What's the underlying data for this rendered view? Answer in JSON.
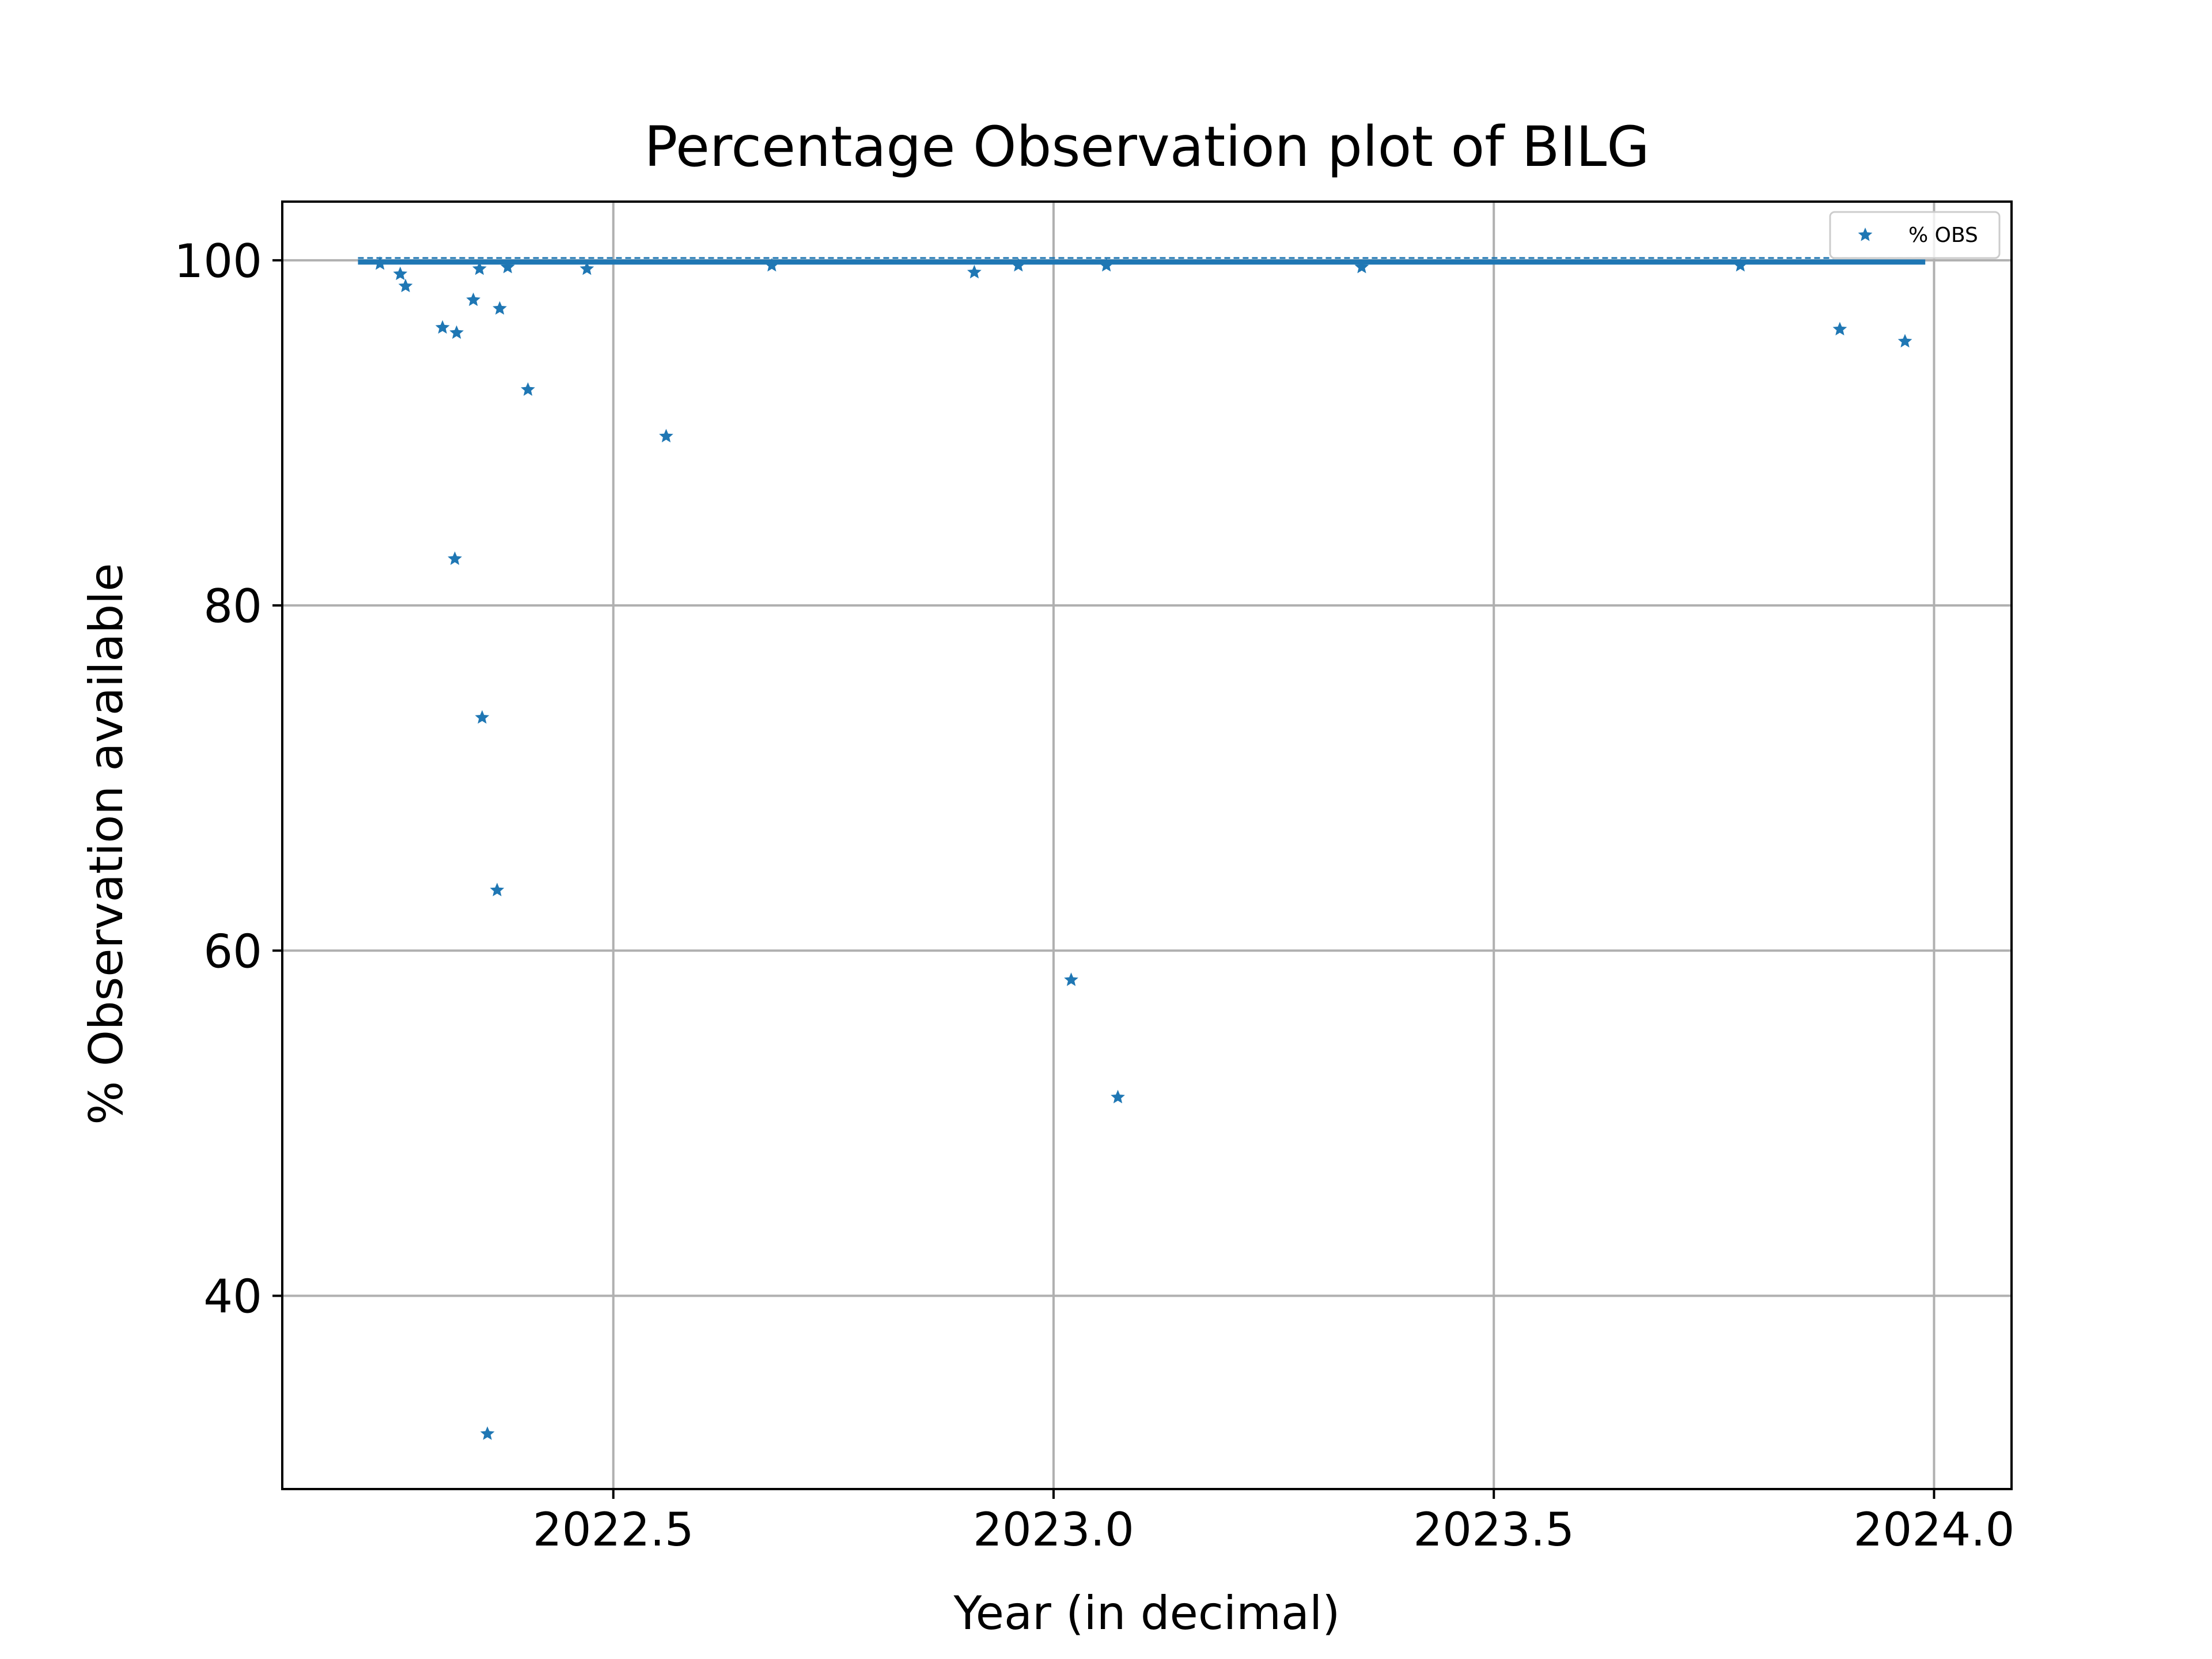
{
  "colors": {
    "series": "#1f77b4",
    "grid": "#b0b0b0",
    "axes": "#000000",
    "background": "#ffffff"
  },
  "chart_data": {
    "type": "scatter",
    "title": "Percentage Observation plot of BILG",
    "xlabel": "Year (in decimal)",
    "ylabel": "% Observation available",
    "xlim": [
      2022.124,
      2024.088
    ],
    "ylim": [
      28.8,
      103.4
    ],
    "xticks": [
      2022.5,
      2023.0,
      2023.5,
      2024.0
    ],
    "xtick_labels": [
      "2022.5",
      "2023.0",
      "2023.5",
      "2024.0"
    ],
    "yticks": [
      40,
      60,
      80,
      100
    ],
    "ytick_labels": [
      "40",
      "60",
      "80",
      "100"
    ],
    "grid": true,
    "legend": {
      "position": "upper right",
      "entries": [
        "% OBS"
      ]
    },
    "marker": "star",
    "series": [
      {
        "name": "% OBS",
        "dense_band": {
          "x_start": 2022.21,
          "x_end": 2023.99,
          "y": 99.9
        },
        "x": [
          2022.258,
          2022.264,
          2022.32,
          2022.322,
          2022.341,
          2022.348,
          2022.351,
          2022.357,
          2022.368,
          2022.371,
          2022.403,
          2022.56,
          2022.91,
          2023.02,
          2023.073,
          2023.893,
          2023.967,
          2022.306,
          2022.47,
          2022.68,
          2022.96,
          2023.06,
          2023.35,
          2023.78,
          2022.235,
          2022.38
        ],
        "y": [
          99.2,
          98.5,
          82.7,
          95.8,
          97.7,
          99.5,
          73.5,
          32.0,
          63.5,
          97.2,
          92.5,
          89.8,
          99.3,
          58.3,
          51.5,
          96.0,
          95.3,
          96.1,
          99.5,
          99.7,
          99.7,
          99.7,
          99.6,
          99.7,
          99.8,
          99.6
        ]
      }
    ]
  }
}
